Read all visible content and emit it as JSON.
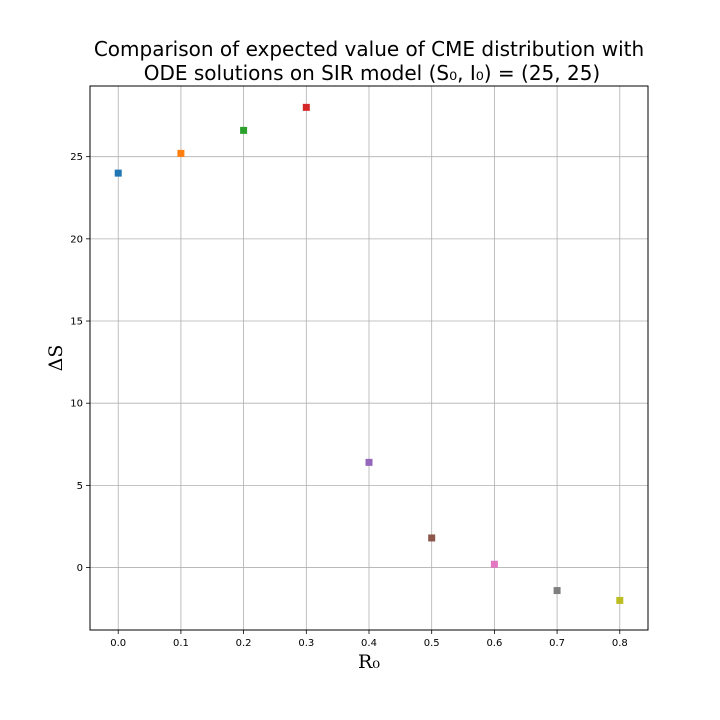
{
  "chart_data": {
    "type": "scatter",
    "title": [
      "Comparison of expected value of CME distribution with",
      "ODE solutions on SIR model (S₀, I₀) = (25, 25)"
    ],
    "xlabel": "R₀",
    "ylabel": "ΔS",
    "xlim": [
      -0.045,
      0.845
    ],
    "ylim": [
      -3.8,
      29.3
    ],
    "grid": true,
    "marker": "square",
    "x": [
      0.0,
      0.1,
      0.2,
      0.3,
      0.4,
      0.5,
      0.6,
      0.7,
      0.8
    ],
    "y": [
      24.0,
      25.2,
      26.6,
      28.0,
      6.4,
      1.8,
      0.2,
      -1.4,
      -2.0
    ],
    "colors": [
      "#1f77b4",
      "#ff7f0e",
      "#2ca02c",
      "#d62728",
      "#9467bd",
      "#8c564b",
      "#e377c2",
      "#7f7f7f",
      "#bcbd22"
    ],
    "xticks": [
      0.0,
      0.1,
      0.2,
      0.3,
      0.4,
      0.5,
      0.6,
      0.7,
      0.8
    ],
    "xtick_labels": [
      "0.0",
      "0.1",
      "0.2",
      "0.3",
      "0.4",
      "0.5",
      "0.6",
      "0.7",
      "0.8"
    ],
    "yticks": [
      0,
      5,
      10,
      15,
      20,
      25
    ],
    "ytick_labels": [
      "0",
      "5",
      "10",
      "15",
      "20",
      "25"
    ]
  }
}
